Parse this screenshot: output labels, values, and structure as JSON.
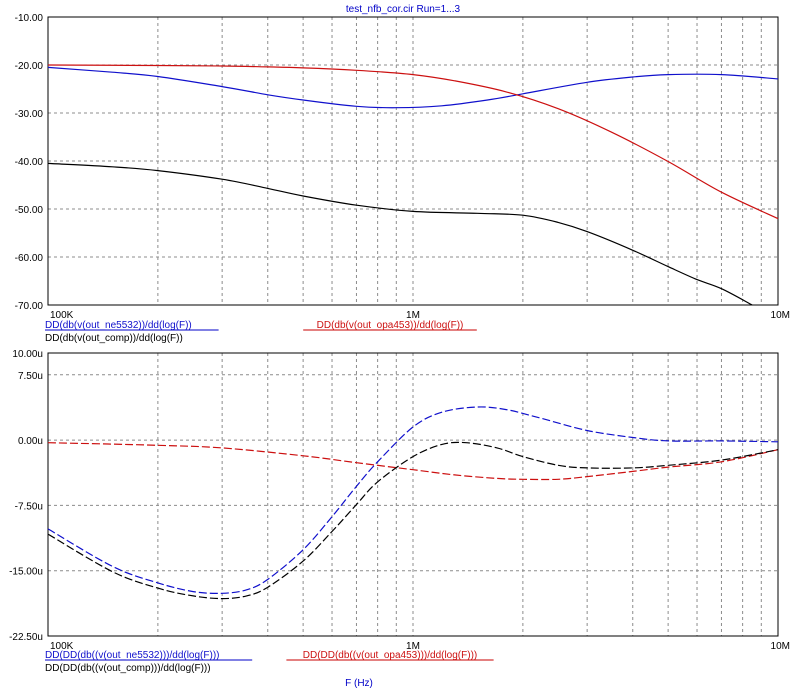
{
  "title": "test_nfb_cor.cir Run=1...3",
  "x_axis_label": "F (Hz)",
  "colors": {
    "blue": "#1010cc",
    "red": "#cc1010",
    "black": "#000000",
    "grid": "#8c8c8c",
    "bar_blue": "#0000c8",
    "bar_red": "#c80000"
  },
  "chart_data": [
    {
      "type": "line",
      "x_scale": "log",
      "xlim": [
        100000,
        10000000
      ],
      "ylim": [
        -70,
        -10
      ],
      "x_ticks": [
        100000,
        1000000,
        10000000
      ],
      "x_tick_labels": [
        "100K",
        "1M",
        "10M"
      ],
      "y_ticks": [
        -10,
        -20,
        -30,
        -40,
        -50,
        -60,
        -70
      ],
      "y_tick_labels": [
        "-10.00",
        "-20.00",
        "-30.00",
        "-40.00",
        "-50.00",
        "-60.00",
        "-70.00"
      ],
      "grid": true,
      "line_style": "solid",
      "series": [
        {
          "name": "DD(db(v(out_ne5532))/dd(log(F))",
          "color": "#1010cc",
          "x": [
            100000,
            150000,
            200000,
            300000,
            400000,
            500000,
            700000,
            900000,
            1200000,
            1600000,
            2000000,
            3000000,
            4000000,
            5000000,
            7000000,
            10000000
          ],
          "y": [
            -20.5,
            -21.5,
            -22.4,
            -24.5,
            -26.2,
            -27.3,
            -28.6,
            -28.9,
            -28.5,
            -27.3,
            -26.0,
            -23.6,
            -22.5,
            -22.0,
            -22.0,
            -22.9
          ]
        },
        {
          "name": "DD(db(v(out_opa453))/dd(log(F))",
          "color": "#cc1010",
          "x": [
            100000,
            200000,
            300000,
            400000,
            500000,
            700000,
            1000000,
            1300000,
            1800000,
            2500000,
            3500000,
            5000000,
            7000000,
            10000000
          ],
          "y": [
            -20.0,
            -20.1,
            -20.2,
            -20.4,
            -20.6,
            -21.1,
            -22.0,
            -23.3,
            -25.6,
            -29.1,
            -34.0,
            -40.1,
            -46.5,
            -52.0
          ]
        },
        {
          "name": "DD(db(v(out_comp))/dd(log(F))",
          "color": "#000000",
          "x": [
            100000,
            150000,
            200000,
            300000,
            400000,
            500000,
            700000,
            1000000,
            1500000,
            2000000,
            2500000,
            3000000,
            4000000,
            5000000,
            6000000,
            7000000,
            8500000
          ],
          "y": [
            -40.5,
            -41.2,
            -42.0,
            -43.8,
            -45.7,
            -47.3,
            -49.2,
            -50.5,
            -50.9,
            -51.3,
            -52.8,
            -54.7,
            -58.6,
            -62.0,
            -64.7,
            -66.6,
            -70.0
          ]
        }
      ]
    },
    {
      "type": "line",
      "x_scale": "log",
      "xlim": [
        100000,
        10000000
      ],
      "ylim": [
        -22.5,
        10
      ],
      "x_ticks": [
        100000,
        1000000,
        10000000
      ],
      "x_tick_labels": [
        "100K",
        "1M",
        "10M"
      ],
      "y_ticks": [
        7.5,
        0,
        -7.5,
        -15,
        -22.5
      ],
      "y_tick_labels": [
        "7.50u",
        "0.00u",
        "-7.50u",
        "-15.00u",
        "-22.50u"
      ],
      "y_top_label": "10.00u",
      "grid": true,
      "line_style": "dashed",
      "series": [
        {
          "name": "DD(DD(db((v(out_ne5532)))/dd(log(F)))",
          "color": "#1010cc",
          "x": [
            100000,
            150000,
            200000,
            250000,
            300000,
            350000,
            400000,
            500000,
            600000,
            700000,
            800000,
            1000000,
            1200000,
            1500000,
            1800000,
            2200000,
            3000000,
            4000000,
            5000000,
            7000000,
            10000000
          ],
          "y": [
            -10.2,
            -14.5,
            -16.4,
            -17.4,
            -17.6,
            -17.2,
            -16.0,
            -12.6,
            -8.8,
            -5.3,
            -2.5,
            1.5,
            3.2,
            3.8,
            3.5,
            2.6,
            1.1,
            0.3,
            -0.1,
            -0.1,
            -0.2
          ]
        },
        {
          "name": "DD(DD(db((v(out_opa453)))/dd(log(F)))",
          "color": "#cc1010",
          "x": [
            100000,
            200000,
            300000,
            500000,
            700000,
            1000000,
            1300000,
            1700000,
            2000000,
            2500000,
            3000000,
            4000000,
            5000000,
            7000000,
            10000000
          ],
          "y": [
            -0.3,
            -0.6,
            -0.9,
            -1.8,
            -2.6,
            -3.4,
            -4.0,
            -4.4,
            -4.5,
            -4.5,
            -4.2,
            -3.6,
            -3.1,
            -2.5,
            -1.1
          ]
        },
        {
          "name": "DD(DD(db((v(out_comp)))/dd(log(F)))",
          "color": "#000000",
          "x": [
            100000,
            150000,
            200000,
            250000,
            300000,
            350000,
            400000,
            500000,
            600000,
            700000,
            800000,
            1000000,
            1200000,
            1400000,
            1700000,
            2000000,
            2500000,
            3000000,
            4000000,
            5000000,
            7000000,
            10000000
          ],
          "y": [
            -10.8,
            -15.1,
            -17.0,
            -17.9,
            -18.2,
            -17.9,
            -16.9,
            -13.9,
            -10.5,
            -7.4,
            -4.8,
            -1.9,
            -0.5,
            -0.3,
            -0.9,
            -1.9,
            -2.9,
            -3.2,
            -3.2,
            -2.9,
            -2.3,
            -1.1
          ]
        }
      ]
    }
  ]
}
